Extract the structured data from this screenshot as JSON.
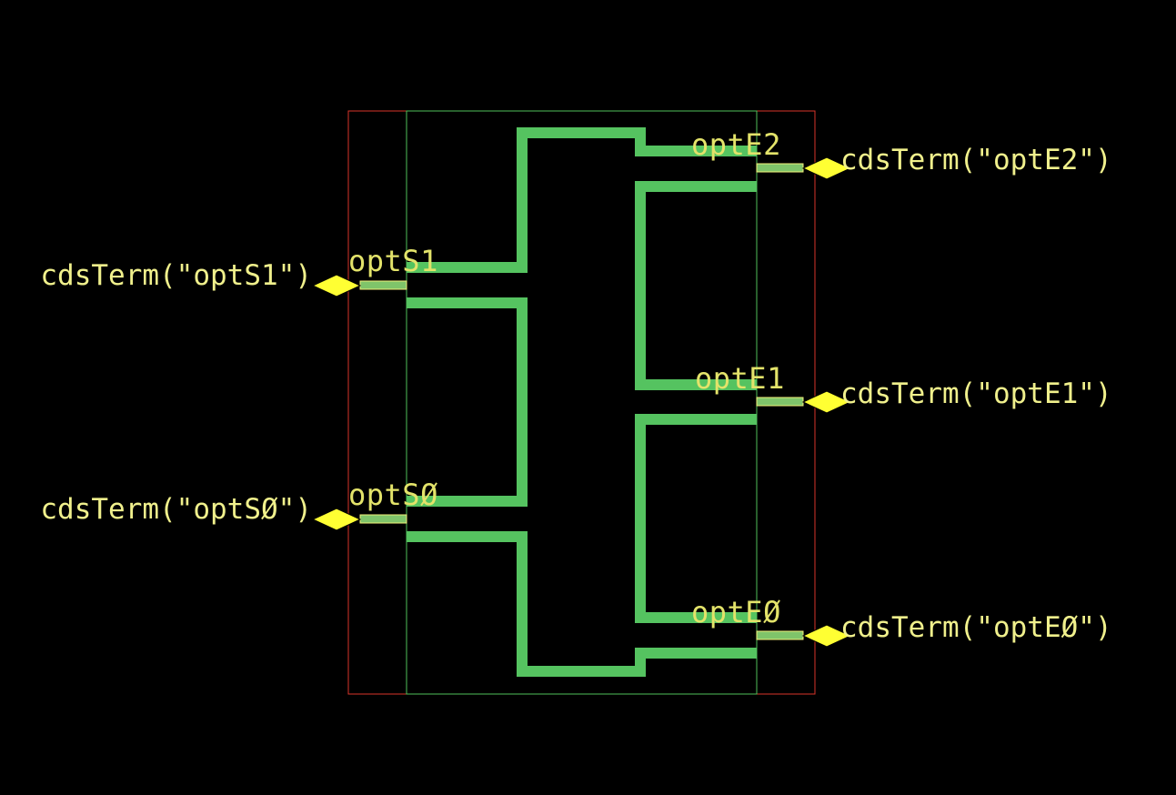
{
  "colors": {
    "background": "#000000",
    "boundary": "#d9352a",
    "inner_boundary": "#4fbf5a",
    "waveguide": "#55c360",
    "pin_fill": "#7fc46a",
    "pin_outline": "#f2f27a",
    "terminal": "#ffff33",
    "label": "#f0f08c",
    "pin_text": "#e3e36a"
  },
  "pins": {
    "optS1": {
      "label": "optS1",
      "terminal": "cdsTerm(\"optS1\")"
    },
    "optS0": {
      "label": "optSØ",
      "terminal": "cdsTerm(\"optSØ\")"
    },
    "optE2": {
      "label": "optE2",
      "terminal": "cdsTerm(\"optE2\")"
    },
    "optE1": {
      "label": "optE1",
      "terminal": "cdsTerm(\"optE1\")"
    },
    "optE0": {
      "label": "optEØ",
      "terminal": "cdsTerm(\"optEØ\")"
    }
  },
  "icons": {
    "terminal": "diamond-icon"
  }
}
